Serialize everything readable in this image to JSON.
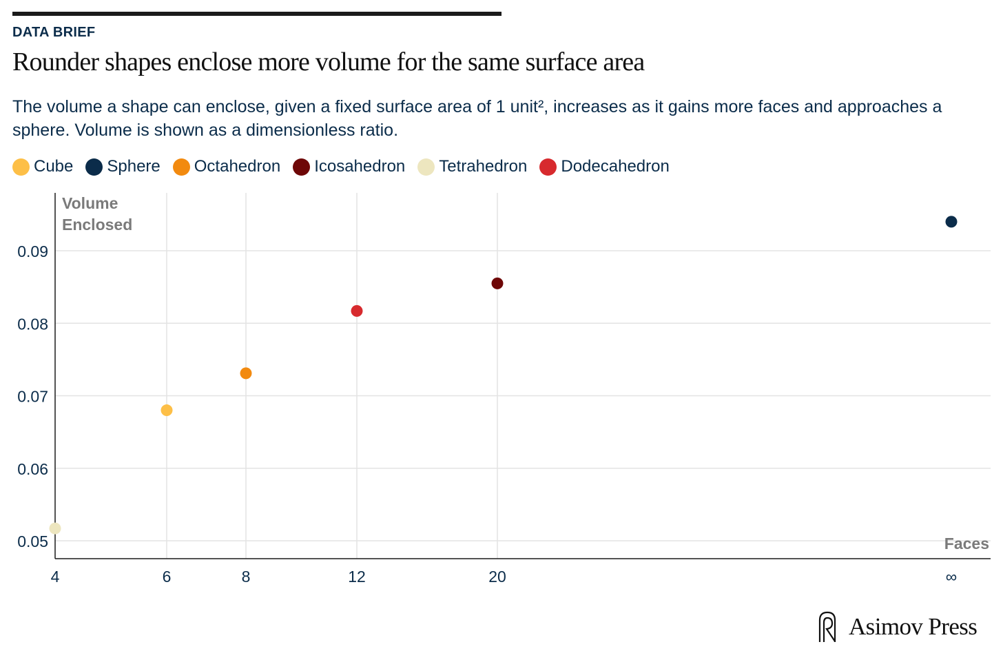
{
  "header": {
    "kicker": "DATA BRIEF",
    "title": "Rounder shapes enclose more volume for the same surface area",
    "subtitle": "The volume a shape can enclose, given a fixed surface area of 1 unit², increases as it gains more faces and approaches a sphere. Volume is shown as a dimensionless ratio."
  },
  "legend": [
    {
      "label": "Cube",
      "color": "#FDBF47"
    },
    {
      "label": "Sphere",
      "color": "#0B2C4A"
    },
    {
      "label": "Octahedron",
      "color": "#F28A0F"
    },
    {
      "label": "Icosahedron",
      "color": "#6E0707"
    },
    {
      "label": "Tetrahedron",
      "color": "#EDE6BF"
    },
    {
      "label": "Dodecahedron",
      "color": "#D72A2E"
    }
  ],
  "chart_data": {
    "type": "scatter",
    "title": "Rounder shapes enclose more volume for the same surface area",
    "xlabel": "Faces",
    "ylabel": "Volume Enclosed",
    "x_ticks": [
      "4",
      "6",
      "8",
      "12",
      "20",
      "∞"
    ],
    "y_ticks": [
      0.05,
      0.06,
      0.07,
      0.08,
      0.09
    ],
    "y_tick_labels": [
      "0.05",
      "0.06",
      "0.07",
      "0.08",
      "0.09"
    ],
    "ylim": [
      0.0475,
      0.0965
    ],
    "grid": true,
    "points": [
      {
        "shape": "Tetrahedron",
        "faces": "4",
        "volume": 0.0517,
        "color": "#EDE6BF"
      },
      {
        "shape": "Cube",
        "faces": "6",
        "volume": 0.068,
        "color": "#FDBF47"
      },
      {
        "shape": "Octahedron",
        "faces": "8",
        "volume": 0.0731,
        "color": "#F28A0F"
      },
      {
        "shape": "Dodecahedron",
        "faces": "12",
        "volume": 0.0817,
        "color": "#D72A2E"
      },
      {
        "shape": "Icosahedron",
        "faces": "20",
        "volume": 0.0855,
        "color": "#6E0707"
      },
      {
        "shape": "Sphere",
        "faces": "∞",
        "volume": 0.094,
        "color": "#0B2C4A"
      }
    ]
  },
  "brand": {
    "name": "Asimov Press",
    "icon": "asimov-logo-icon"
  }
}
